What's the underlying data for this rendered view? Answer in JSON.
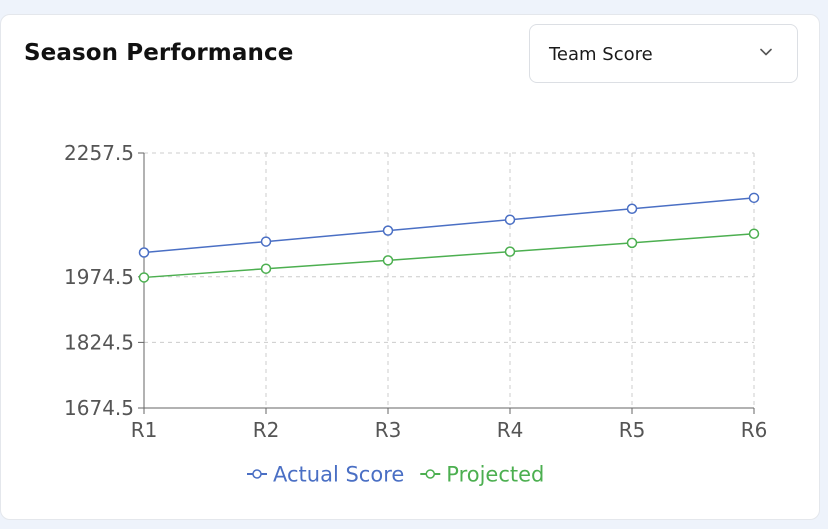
{
  "card": {
    "title": "Season Performance"
  },
  "selector": {
    "value": "Team Score",
    "icon": "chevron-down-icon"
  },
  "chart_data": {
    "type": "line",
    "categories": [
      "R1",
      "R2",
      "R3",
      "R4",
      "R5",
      "R6"
    ],
    "ylim": [
      1674.5,
      2257.5
    ],
    "yticks": [
      "2257.5",
      "1974.5",
      "1824.5",
      "1674.5"
    ],
    "ytick_values": [
      2257.5,
      1974.5,
      1824.5,
      1674.5
    ],
    "grid": true,
    "legend_position": "bottom-center",
    "series": [
      {
        "name": "Actual Score",
        "color": "#4a6fc4",
        "values": [
          2030,
          2055,
          2080,
          2105,
          2130,
          2155
        ]
      },
      {
        "name": "Projected",
        "color": "#4caf50",
        "values": [
          1973,
          1993,
          2012,
          2032,
          2052,
          2073
        ]
      }
    ]
  }
}
